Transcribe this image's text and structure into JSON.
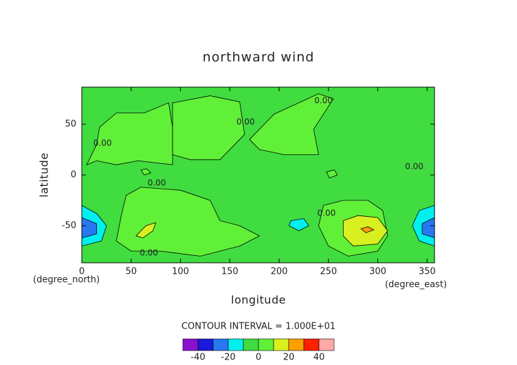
{
  "chart_data": {
    "type": "contour",
    "title": "northward wind",
    "x_label": "longitude",
    "y_label": "latitude",
    "x_unit": "(degree_east)",
    "y_unit": "(degree_north)",
    "xlim": [
      0,
      357.5
    ],
    "ylim": [
      -86.5,
      86.5
    ],
    "xticks": [
      0,
      50,
      100,
      150,
      200,
      250,
      300,
      350
    ],
    "yticks": [
      -50,
      0,
      50
    ],
    "contour_interval": "CONTOUR INTERVAL = 1.000E+01",
    "levels": [
      -50,
      -40,
      -30,
      -20,
      -10,
      0,
      10,
      20,
      30,
      40,
      50
    ],
    "colors": [
      "#8a10d0",
      "#1a1ad8",
      "#2878f0",
      "#00f0f0",
      "#40dc40",
      "#60f038",
      "#d8f020",
      "#ffa000",
      "#ff2000",
      "#ffa8a8"
    ],
    "colorbar_ticks": [
      -40,
      -20,
      0,
      20,
      40
    ],
    "background_level": -10,
    "regions": [
      {
        "level": 0,
        "points": [
          [
            18,
            47
          ],
          [
            35,
            61
          ],
          [
            63,
            61
          ],
          [
            88,
            71
          ],
          [
            92,
            47
          ],
          [
            92,
            10
          ],
          [
            57,
            14
          ],
          [
            35,
            10
          ],
          [
            15,
            14
          ],
          [
            5,
            10
          ],
          [
            15,
            30
          ]
        ]
      },
      {
        "level": 0,
        "points": [
          [
            92,
            71
          ],
          [
            130,
            78
          ],
          [
            160,
            72
          ],
          [
            165,
            40
          ],
          [
            140,
            15
          ],
          [
            110,
            15
          ],
          [
            92,
            20
          ]
        ]
      },
      {
        "level": 0,
        "points": [
          [
            170,
            35
          ],
          [
            195,
            60
          ],
          [
            240,
            80
          ],
          [
            255,
            75
          ],
          [
            235,
            45
          ],
          [
            240,
            20
          ],
          [
            205,
            20
          ],
          [
            180,
            25
          ]
        ]
      },
      {
        "level": 0,
        "points": [
          [
            45,
            -20
          ],
          [
            60,
            -12
          ],
          [
            100,
            -15
          ],
          [
            130,
            -25
          ],
          [
            140,
            -45
          ],
          [
            160,
            -50
          ],
          [
            180,
            -60
          ],
          [
            160,
            -70
          ],
          [
            120,
            -80
          ],
          [
            80,
            -75
          ],
          [
            50,
            -75
          ],
          [
            35,
            -65
          ],
          [
            40,
            -40
          ]
        ]
      },
      {
        "level": 0,
        "points": [
          [
            245,
            -30
          ],
          [
            265,
            -25
          ],
          [
            290,
            -25
          ],
          [
            305,
            -35
          ],
          [
            310,
            -60
          ],
          [
            300,
            -75
          ],
          [
            270,
            -80
          ],
          [
            250,
            -70
          ],
          [
            240,
            -50
          ]
        ]
      },
      {
        "level": 0,
        "points": [
          [
            60,
            5
          ],
          [
            66,
            6
          ],
          [
            70,
            2
          ],
          [
            63,
            0
          ]
        ]
      },
      {
        "level": 0,
        "points": [
          [
            248,
            3
          ],
          [
            256,
            5
          ],
          [
            259,
            0
          ],
          [
            251,
            -3
          ]
        ]
      },
      {
        "level": 10,
        "points": [
          [
            55,
            -60
          ],
          [
            65,
            -50
          ],
          [
            75,
            -47
          ],
          [
            72,
            -55
          ],
          [
            62,
            -62
          ]
        ]
      },
      {
        "level": 10,
        "points": [
          [
            265,
            -45
          ],
          [
            280,
            -40
          ],
          [
            300,
            -42
          ],
          [
            310,
            -55
          ],
          [
            300,
            -68
          ],
          [
            275,
            -70
          ],
          [
            265,
            -60
          ]
        ]
      },
      {
        "level": 20,
        "points": [
          [
            283,
            -53
          ],
          [
            290,
            -51
          ],
          [
            296,
            -54
          ],
          [
            288,
            -57
          ]
        ]
      },
      {
        "level": -20,
        "points": [
          [
            0,
            -30
          ],
          [
            15,
            -38
          ],
          [
            25,
            -50
          ],
          [
            20,
            -65
          ],
          [
            0,
            -70
          ]
        ]
      },
      {
        "level": -20,
        "points": [
          [
            357.5,
            -30
          ],
          [
            342,
            -35
          ],
          [
            335,
            -50
          ],
          [
            342,
            -65
          ],
          [
            357.5,
            -70
          ]
        ]
      },
      {
        "level": -20,
        "points": [
          [
            212,
            -45
          ],
          [
            225,
            -43
          ],
          [
            230,
            -50
          ],
          [
            220,
            -55
          ],
          [
            210,
            -50
          ]
        ]
      },
      {
        "level": -30,
        "points": [
          [
            0,
            -42
          ],
          [
            15,
            -48
          ],
          [
            15,
            -58
          ],
          [
            0,
            -62
          ]
        ]
      },
      {
        "level": -30,
        "points": [
          [
            357.5,
            -42
          ],
          [
            345,
            -48
          ],
          [
            345,
            -58
          ],
          [
            357.5,
            -62
          ]
        ]
      }
    ],
    "contour_labels": [
      {
        "text": "0.00",
        "lon": 245,
        "lat": 73
      },
      {
        "text": "0.00",
        "lon": 166,
        "lat": 52
      },
      {
        "text": "0.00",
        "lon": 21,
        "lat": 31
      },
      {
        "text": "0.00",
        "lon": 337,
        "lat": 8
      },
      {
        "text": "0.00",
        "lon": 76,
        "lat": -8
      },
      {
        "text": "0.00",
        "lon": 248,
        "lat": -38
      },
      {
        "text": "0.00",
        "lon": 68,
        "lat": -77
      }
    ]
  }
}
